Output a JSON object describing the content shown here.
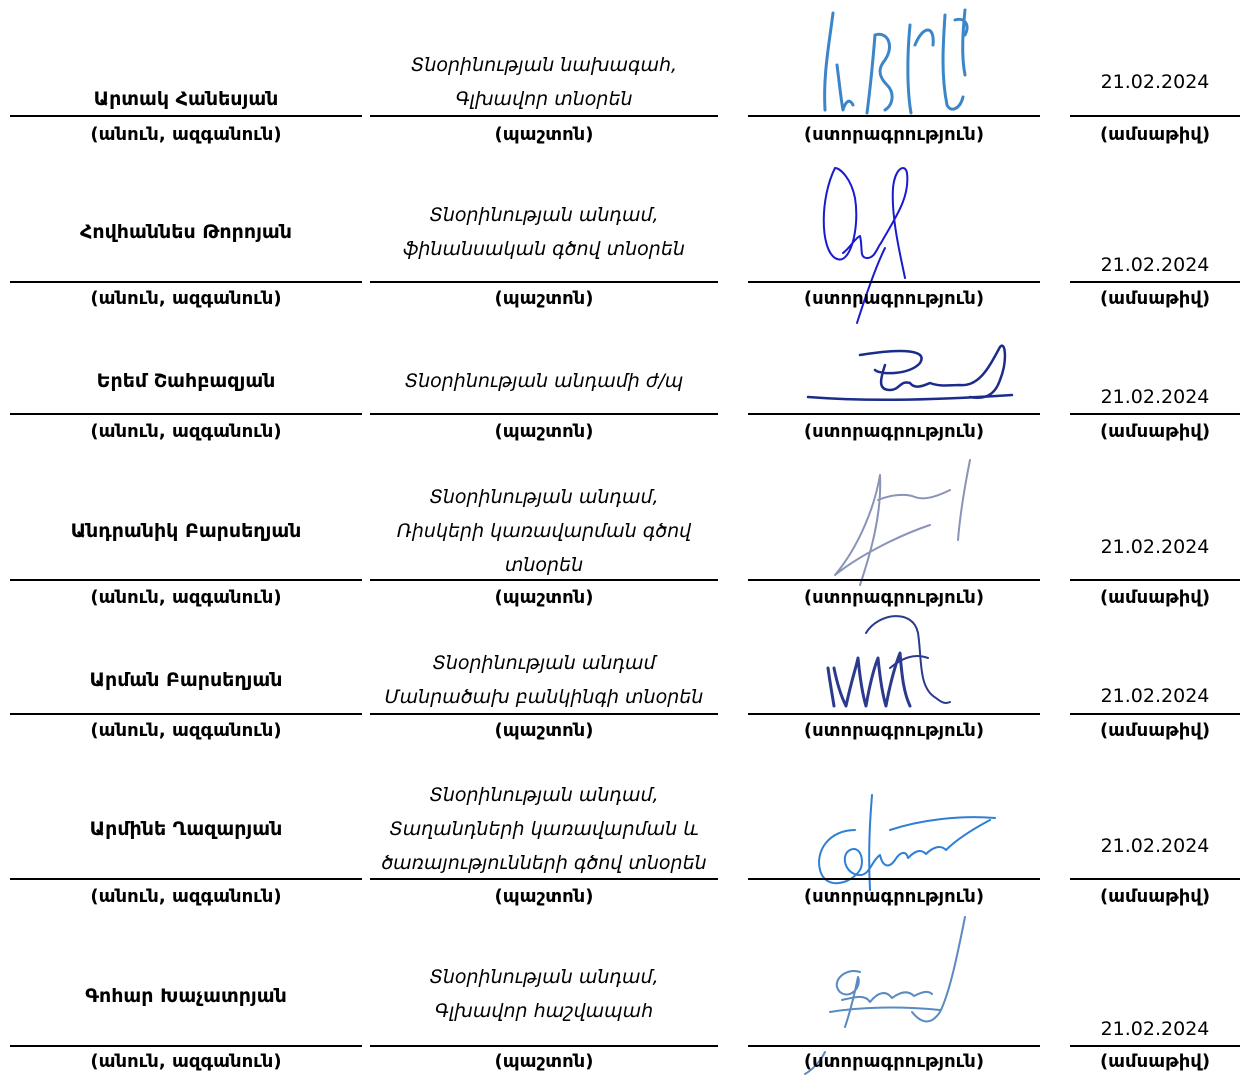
{
  "labels": {
    "name": "(անուն, ազգանուն)",
    "position": "(պաշտոն)",
    "signature": "(ստորագրություն)",
    "date": "(ամսաթիվ)"
  },
  "signatories": [
    {
      "name": "Արտակ Հանեսյան",
      "position_lines": [
        "Տնօրինության նախագահ,",
        "Գլխավոր տնօրեն"
      ],
      "date": "21.02.2024",
      "signature_color": "#3a86c8"
    },
    {
      "name": "Հովհաննես Թորոյան",
      "position_lines": [
        "Տնօրինության անդամ,",
        "ֆինանսական գծով տնօրեն"
      ],
      "date": "21.02.2024",
      "signature_color": "#1a1ad0"
    },
    {
      "name": "Երեմ Շահբազյան",
      "position_lines": [
        "Տնօրինության անդամի ժ/պ"
      ],
      "date": "21.02.2024",
      "signature_color": "#1c2c8a"
    },
    {
      "name": "Անդրանիկ Բարսեղյան",
      "position_lines": [
        "Տնօրինության անդամ,",
        "Ռիսկերի կառավարման գծով",
        "տնօրեն"
      ],
      "date": "21.02.2024",
      "signature_color": "#8a93b8"
    },
    {
      "name": "Արման Բարսեղյան",
      "position_lines": [
        "Տնօրինության անդամ",
        "Մանրածախ բանկինգի տնօրեն"
      ],
      "date": "21.02.2024",
      "signature_color": "#2c3a8e"
    },
    {
      "name": "Արմինե Ղազարյան",
      "position_lines": [
        "Տնօրինության անդամ,",
        "Տաղանդների կառավարման և",
        "ծառայությունների գծով տնօրեն"
      ],
      "date": "21.02.2024",
      "signature_color": "#2f7fd6"
    },
    {
      "name": "Գոհար Խաչատրյան",
      "position_lines": [
        "Տնօրինության անդամ,",
        "Գլխավոր հաշվապահ"
      ],
      "date": "21.02.2024",
      "signature_color": "#5a8ac2"
    }
  ]
}
